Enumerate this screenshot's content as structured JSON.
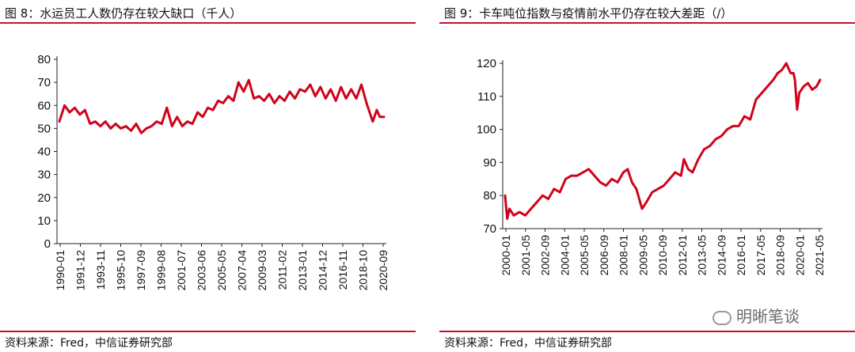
{
  "chart_data": [
    {
      "type": "line",
      "title": "图 8：水运员工人数仍存在较大缺口（千人）",
      "ylim": [
        0,
        80
      ],
      "yticks": [
        0,
        10,
        20,
        30,
        40,
        50,
        60,
        70,
        80
      ],
      "xtick_labels": [
        "1990-01",
        "1991-12",
        "1993-11",
        "1995-10",
        "1997-09",
        "1999-08",
        "2001-07",
        "2003-06",
        "2005-05",
        "2007-04",
        "2009-03",
        "2011-02",
        "2013-01",
        "2014-12",
        "2016-11",
        "2018-10",
        "2020-09"
      ],
      "color": "#d0021b",
      "grid": false,
      "series": [
        {
          "x": [
            1990.0,
            1990.5,
            1991.0,
            1991.5,
            1992.0,
            1992.5,
            1993.0,
            1993.5,
            1994.0,
            1994.5,
            1995.0,
            1995.5,
            1996.0,
            1996.5,
            1997.0,
            1997.5,
            1998.0,
            1998.5,
            1999.0,
            1999.5,
            2000.0,
            2000.5,
            2001.0,
            2001.5,
            2002.0,
            2002.5,
            2003.0,
            2003.5,
            2004.0,
            2004.5,
            2005.0,
            2005.5,
            2006.0,
            2006.5,
            2007.0,
            2007.5,
            2008.0,
            2008.5,
            2009.0,
            2009.5,
            2010.0,
            2010.5,
            2011.0,
            2011.5,
            2012.0,
            2012.5,
            2013.0,
            2013.5,
            2014.0,
            2014.5,
            2015.0,
            2015.5,
            2016.0,
            2016.5,
            2017.0,
            2017.5,
            2018.0,
            2018.5,
            2019.0,
            2019.5,
            2020.0,
            2020.3,
            2020.6,
            2021.0,
            2021.3,
            2021.7
          ],
          "values": [
            53,
            60,
            57,
            59,
            56,
            58,
            52,
            53,
            51,
            53,
            50,
            52,
            50,
            51,
            49,
            52,
            48,
            50,
            51,
            53,
            52,
            59,
            51,
            55,
            51,
            53,
            52,
            57,
            55,
            59,
            58,
            62,
            61,
            64,
            62,
            70,
            66,
            71,
            63,
            64,
            62,
            65,
            61,
            64,
            62,
            66,
            63,
            67,
            66,
            69,
            64,
            68,
            63,
            67,
            62,
            68,
            63,
            67,
            63,
            69,
            61,
            57,
            53,
            58,
            55,
            55
          ]
        }
      ]
    },
    {
      "type": "line",
      "title": "图 9：卡车吨位指数与疫情前水平仍存在较大差距（/）",
      "ylim": [
        70,
        120
      ],
      "yticks": [
        70,
        80,
        90,
        100,
        110,
        120
      ],
      "xtick_labels": [
        "2000-01",
        "2001-05",
        "2002-09",
        "2004-01",
        "2005-05",
        "2006-09",
        "2008-01",
        "2009-05",
        "2010-09",
        "2012-01",
        "2013-05",
        "2014-09",
        "2016-01",
        "2017-05",
        "2018-09",
        "2020-01",
        "2021-05"
      ],
      "color": "#d0021b",
      "grid": false,
      "series": [
        {
          "x": [
            2000.0,
            2000.15,
            2000.3,
            2000.6,
            2001.0,
            2001.4,
            2001.8,
            2002.2,
            2002.6,
            2003.0,
            2003.4,
            2003.8,
            2004.2,
            2004.6,
            2005.0,
            2005.4,
            2005.8,
            2006.2,
            2006.6,
            2007.0,
            2007.4,
            2007.8,
            2008.2,
            2008.5,
            2008.8,
            2009.1,
            2009.3,
            2009.5,
            2009.8,
            2010.2,
            2010.6,
            2011.0,
            2011.4,
            2011.8,
            2012.2,
            2012.4,
            2012.7,
            2013.0,
            2013.4,
            2013.8,
            2014.2,
            2014.6,
            2015.0,
            2015.4,
            2015.8,
            2016.2,
            2016.6,
            2017.0,
            2017.4,
            2017.8,
            2018.2,
            2018.6,
            2018.9,
            2019.2,
            2019.5,
            2019.8,
            2020.0,
            2020.1,
            2020.25,
            2020.4,
            2020.7,
            2021.0,
            2021.3,
            2021.6,
            2021.85
          ],
          "values": [
            80,
            73,
            76,
            74,
            75,
            74,
            76,
            78,
            80,
            79,
            82,
            81,
            85,
            86,
            86,
            87,
            88,
            86,
            84,
            83,
            85,
            84,
            87,
            88,
            84,
            82,
            79,
            76,
            78,
            81,
            82,
            83,
            85,
            87,
            86,
            91,
            88,
            87,
            91,
            94,
            95,
            97,
            98,
            100,
            101,
            101,
            104,
            103,
            109,
            111,
            113,
            115,
            117,
            118,
            120,
            117,
            117,
            115,
            106,
            111,
            113,
            114,
            112,
            113,
            115
          ]
        }
      ]
    }
  ],
  "panels": {
    "left": {
      "title": "图 8：水运员工人数仍存在较大缺口（千人）",
      "source": "资料来源：Fred，中信证券研究部"
    },
    "right": {
      "title": "图 9：卡车吨位指数与疫情前水平仍存在较大差距（/）",
      "source": "资料来源：Fred，中信证券研究部"
    }
  },
  "watermark": {
    "text": "明晰笔谈",
    "icon": "wechat-icon"
  }
}
